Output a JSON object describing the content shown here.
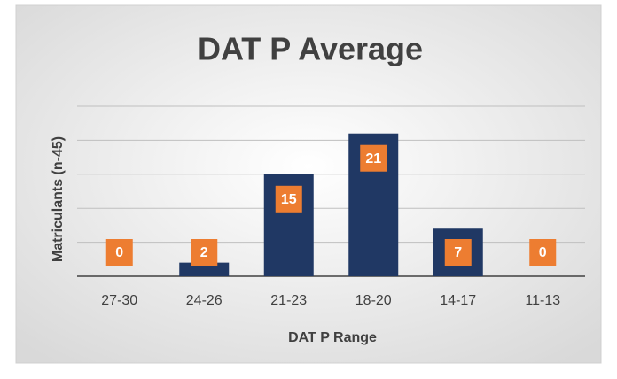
{
  "chart_data": {
    "type": "bar",
    "title": "DAT P Average",
    "x_label": "DAT P Range",
    "y_label": "Matriculants (n-45)",
    "categories": [
      "27-30",
      "24-26",
      "21-23",
      "18-20",
      "14-17",
      "11-13"
    ],
    "values": [
      0,
      2,
      15,
      21,
      7,
      0
    ],
    "color": "#203864",
    "label_color": "#ed7d31",
    "ylim": [
      0,
      25
    ],
    "yticks": [
      0,
      5,
      10,
      15,
      20,
      25
    ],
    "grid": true
  }
}
